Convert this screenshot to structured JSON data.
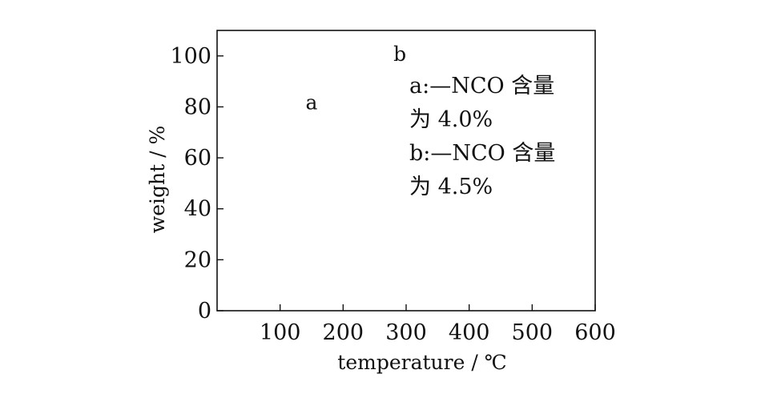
{
  "chart_data": {
    "type": "line",
    "title": "",
    "xlabel": "temperature / ℃",
    "ylabel": "weight / %",
    "xlim": [
      0,
      600
    ],
    "ylim": [
      0,
      110
    ],
    "xticks": [
      100,
      200,
      300,
      400,
      500,
      600
    ],
    "yticks": [
      0,
      20,
      40,
      60,
      80,
      100
    ],
    "xtick_labels": [
      "100",
      "200",
      "300",
      "400",
      "500",
      "600"
    ],
    "ytick_labels": [
      "0",
      "20",
      "40",
      "60",
      "80",
      "100"
    ],
    "grid": false,
    "series": [],
    "curve_labels": [
      {
        "text": "a",
        "x": 150,
        "y": 79
      },
      {
        "text": "b",
        "x": 290,
        "y": 98
      }
    ],
    "legend": {
      "placement": "top-right",
      "lines": [
        "a:—NCO 含量",
        "为 4.0%",
        "b:—NCO 含量",
        "为 4.5%"
      ]
    },
    "colors": {
      "axis": "#111111",
      "text": "#111111",
      "background": "#ffffff"
    }
  }
}
